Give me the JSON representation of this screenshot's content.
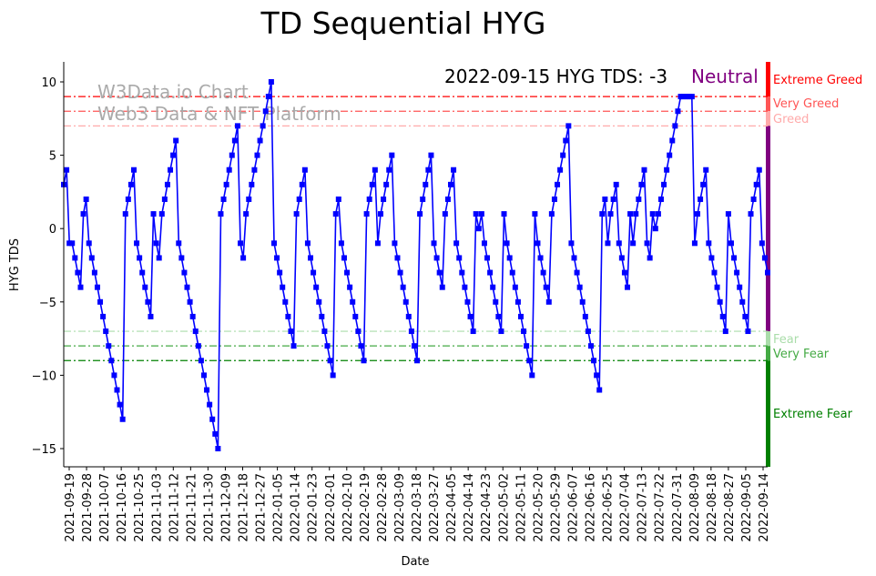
{
  "chart_data": {
    "type": "line",
    "title": "TD Sequential HYG",
    "xlabel": "Date",
    "ylabel": "HYG TDS",
    "ylim": [
      -16.3,
      11.3
    ],
    "yticks": [
      10,
      5,
      0,
      -5,
      -10,
      -15
    ],
    "xticks": [
      "2021-09-19",
      "2021-09-28",
      "2021-10-07",
      "2021-10-16",
      "2021-10-25",
      "2021-11-03",
      "2021-11-12",
      "2021-11-21",
      "2021-11-30",
      "2021-12-09",
      "2021-12-18",
      "2021-12-27",
      "2022-01-05",
      "2022-01-14",
      "2022-01-23",
      "2022-02-01",
      "2022-02-10",
      "2022-02-19",
      "2022-02-28",
      "2022-03-09",
      "2022-03-18",
      "2022-03-27",
      "2022-04-05",
      "2022-04-14",
      "2022-04-23",
      "2022-05-02",
      "2022-05-11",
      "2022-05-20",
      "2022-05-29",
      "2022-06-07",
      "2022-06-16",
      "2022-06-25",
      "2022-07-04",
      "2022-07-13",
      "2022-07-22",
      "2022-07-31",
      "2022-08-09",
      "2022-08-18",
      "2022-08-27",
      "2022-09-05",
      "2022-09-14"
    ],
    "series": [
      {
        "name": "HYG TDS",
        "color": "#0000ff",
        "values": [
          3,
          4,
          -1,
          -1,
          -2,
          -3,
          -4,
          1,
          2,
          -1,
          -2,
          -3,
          -4,
          -5,
          -6,
          -7,
          -8,
          -9,
          -10,
          -11,
          -12,
          -13,
          1,
          2,
          3,
          4,
          -1,
          -2,
          -3,
          -4,
          -5,
          -6,
          1,
          -1,
          -2,
          1,
          2,
          3,
          4,
          5,
          6,
          -1,
          -2,
          -3,
          -4,
          -5,
          -6,
          -7,
          -8,
          -9,
          -10,
          -11,
          -12,
          -13,
          -14,
          -15,
          1,
          2,
          3,
          4,
          5,
          6,
          7,
          -1,
          -2,
          1,
          2,
          3,
          4,
          5,
          6,
          7,
          8,
          9,
          10,
          -1,
          -2,
          -3,
          -4,
          -5,
          -6,
          -7,
          -8,
          1,
          2,
          3,
          4,
          -1,
          -2,
          -3,
          -4,
          -5,
          -6,
          -7,
          -8,
          -9,
          -10,
          1,
          2,
          -1,
          -2,
          -3,
          -4,
          -5,
          -6,
          -7,
          -8,
          -9,
          1,
          2,
          3,
          4,
          -1,
          1,
          2,
          3,
          4,
          5,
          -1,
          -2,
          -3,
          -4,
          -5,
          -6,
          -7,
          -8,
          -9,
          1,
          2,
          3,
          4,
          5,
          -1,
          -2,
          -3,
          -4,
          1,
          2,
          3,
          4,
          -1,
          -2,
          -3,
          -4,
          -5,
          -6,
          -7,
          1,
          0,
          1,
          -1,
          -2,
          -3,
          -4,
          -5,
          -6,
          -7,
          1,
          -1,
          -2,
          -3,
          -4,
          -5,
          -6,
          -7,
          -8,
          -9,
          -10,
          1,
          -1,
          -2,
          -3,
          -4,
          -5,
          1,
          2,
          3,
          4,
          5,
          6,
          7,
          -1,
          -2,
          -3,
          -4,
          -5,
          -6,
          -7,
          -8,
          -9,
          -10,
          -11,
          1,
          2,
          -1,
          1,
          2,
          3,
          -1,
          -2,
          -3,
          -4,
          1,
          -1,
          1,
          2,
          3,
          4,
          -1,
          -2,
          1,
          0,
          1,
          2,
          3,
          4,
          5,
          6,
          7,
          8,
          9,
          9,
          9,
          9,
          9,
          -1,
          1,
          2,
          3,
          4,
          -1,
          -2,
          -3,
          -4,
          -5,
          -6,
          -7,
          1,
          -1,
          -2,
          -3,
          -4,
          -5,
          -6,
          -7,
          1,
          2,
          3,
          4,
          -1,
          -2,
          -3
        ]
      }
    ],
    "thresholds": [
      {
        "label": "Extreme Greed",
        "value": 9,
        "color": "#ff0000"
      },
      {
        "label": "Very Greed",
        "value": 8,
        "color": "#ff5555"
      },
      {
        "label": "Greed",
        "value": 7,
        "color": "#ffaaaa"
      },
      {
        "label": "Fear",
        "value": -7,
        "color": "#aaddaa"
      },
      {
        "label": "Very Fear",
        "value": -8,
        "color": "#44aa44"
      },
      {
        "label": "Extreme Fear",
        "value": -9,
        "color": "#008000"
      }
    ],
    "neutral_color": "#800080",
    "annotation": {
      "text": "2022-09-15 HYG TDS: -3",
      "status": "Neutral"
    },
    "watermark": [
      "W3Data.io Chart",
      "Web3 Data & NFT Platform"
    ],
    "grid": false
  }
}
